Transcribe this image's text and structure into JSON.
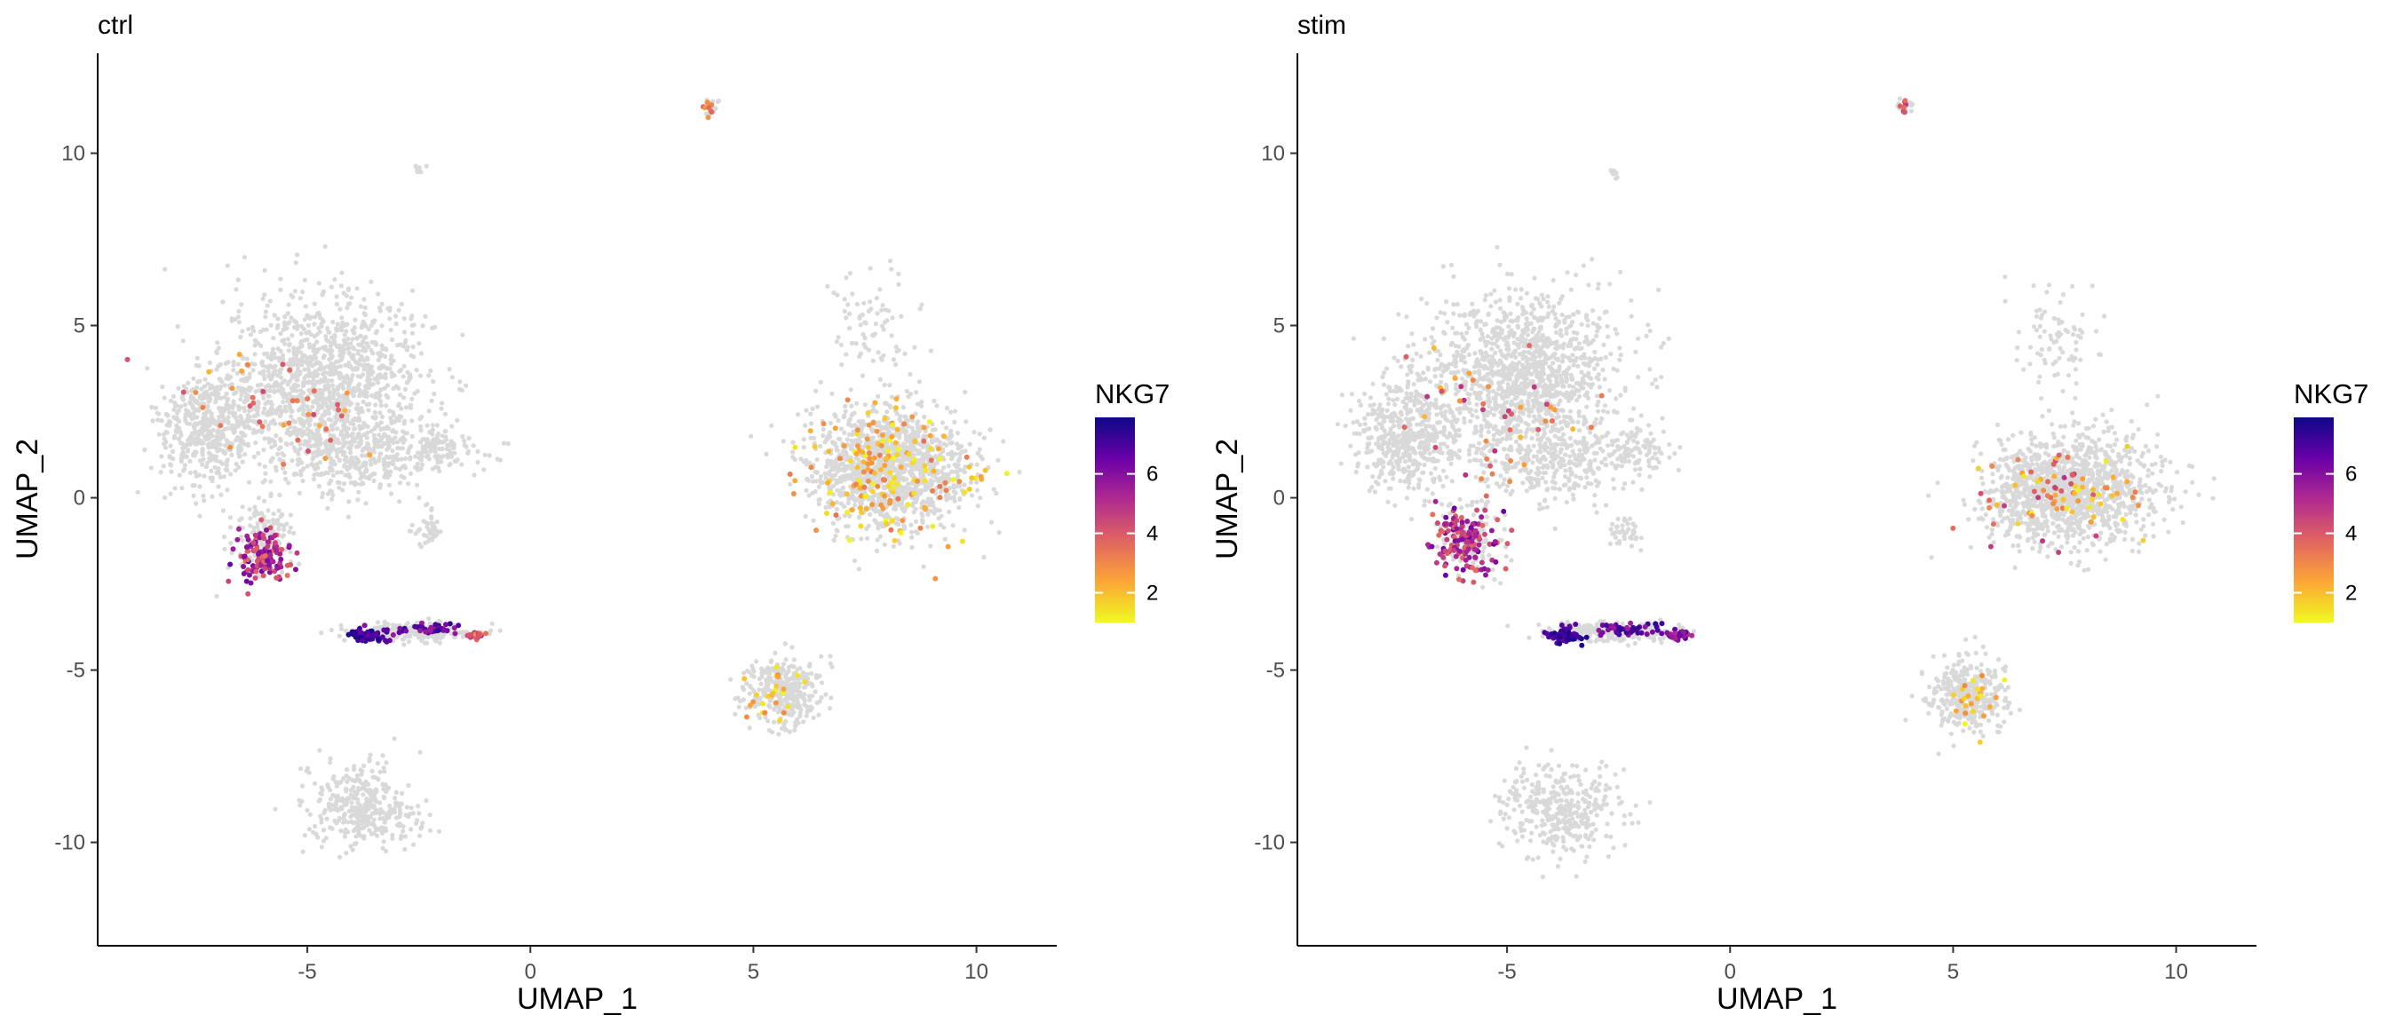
{
  "chart_data": [
    {
      "type": "scatter",
      "title": "ctrl",
      "xlabel": "UMAP_1",
      "ylabel": "UMAP_2",
      "xlim": [
        -9.7,
        11.8
      ],
      "ylim": [
        -13.0,
        12.9
      ],
      "x_ticks": [
        -5,
        0,
        5,
        10
      ],
      "y_ticks": [
        -10,
        -5,
        0,
        5,
        10
      ],
      "grid": false,
      "legend": {
        "title": "NKG7",
        "placement": "right",
        "color_scale": "plasma (reversed)",
        "range": [
          1,
          7.9
        ],
        "ticks": [
          2,
          4,
          6
        ],
        "colors": [
          "#f0f921",
          "#fca636",
          "#e16462",
          "#b12a90",
          "#6a00a8",
          "#0d0887"
        ]
      },
      "background_color": "#d9d9d9",
      "series": [
        {
          "name": "NKG7",
          "clusters": [
            {
              "label": "upper-left-island",
              "center": [
                -4.6,
                3.3
              ],
              "spread": [
                1.9,
                2.1
              ],
              "n": 1300
            },
            {
              "label": "left-lobe",
              "center": [
                -7.2,
                2.0
              ],
              "spread": [
                0.9,
                1.3
              ],
              "n": 500
            },
            {
              "label": "left-mid",
              "center": [
                -4.0,
                1.2
              ],
              "spread": [
                1.5,
                0.9
              ],
              "n": 300
            },
            {
              "label": "right-arm",
              "center": [
                -2.0,
                1.5
              ],
              "spread": [
                0.7,
                0.5
              ],
              "n": 90
            },
            {
              "label": "left-lower",
              "center": [
                -5.9,
                -1.2
              ],
              "spread": [
                0.6,
                0.9
              ],
              "n": 140
            },
            {
              "label": "small-blob",
              "center": [
                -2.3,
                -0.9
              ],
              "spread": [
                0.3,
                0.5
              ],
              "n": 40
            },
            {
              "label": "nk-band",
              "center": [
                -2.8,
                -3.9
              ],
              "spread": [
                1.3,
                0.23
              ],
              "n": 250
            },
            {
              "label": "right-main",
              "center": [
                8.0,
                0.9
              ],
              "spread": [
                1.5,
                1.4
              ],
              "n": 1300
            },
            {
              "label": "right-arm-up",
              "center": [
                7.7,
                5.0
              ],
              "spread": [
                0.8,
                1.2
              ],
              "n": 80
            },
            {
              "label": "right-lower",
              "center": [
                5.7,
                -5.6
              ],
              "spread": [
                0.7,
                0.8
              ],
              "n": 350
            },
            {
              "label": "bottom-left",
              "center": [
                -3.8,
                -9.0
              ],
              "spread": [
                1.1,
                1.0
              ],
              "n": 360
            },
            {
              "label": "top-small",
              "center": [
                -2.5,
                9.5
              ],
              "spread": [
                0.1,
                0.1
              ],
              "n": 10
            },
            {
              "label": "top-right-small",
              "center": [
                4.0,
                11.3
              ],
              "spread": [
                0.18,
                0.2
              ],
              "n": 20
            }
          ],
          "expressing": [
            {
              "label": "left-lower-expr",
              "center": [
                -6.0,
                -1.7
              ],
              "spread": [
                0.5,
                0.6
              ],
              "n": 130,
              "level": [
                3.5,
                6.5
              ]
            },
            {
              "label": "nk-core",
              "center": [
                -3.6,
                -4.0
              ],
              "spread": [
                0.35,
                0.18
              ],
              "n": 55,
              "level": [
                6.5,
                7.8
              ]
            },
            {
              "label": "nk-mid",
              "center": [
                -2.3,
                -3.8
              ],
              "spread": [
                0.7,
                0.15
              ],
              "n": 45,
              "level": [
                5.5,
                7.5
              ]
            },
            {
              "label": "nk-tip",
              "center": [
                -1.2,
                -4.0
              ],
              "spread": [
                0.2,
                0.1
              ],
              "n": 25,
              "level": [
                2.5,
                5.5
              ]
            },
            {
              "label": "right-main-expr",
              "center": [
                8.0,
                0.8
              ],
              "spread": [
                1.4,
                1.3
              ],
              "n": 170,
              "level": [
                1,
                3.5
              ]
            },
            {
              "label": "right-lower-expr",
              "center": [
                5.5,
                -5.8
              ],
              "spread": [
                0.6,
                0.6
              ],
              "n": 25,
              "level": [
                1,
                3
              ]
            },
            {
              "label": "upper-left-expr",
              "center": [
                -5.5,
                2.5
              ],
              "spread": [
                1.8,
                1.6
              ],
              "n": 40,
              "level": [
                2,
                4.5
              ]
            },
            {
              "label": "top-right-expr",
              "center": [
                4.0,
                11.3
              ],
              "spread": [
                0.15,
                0.2
              ],
              "n": 8,
              "level": [
                2.5,
                4
              ]
            }
          ]
        }
      ]
    },
    {
      "type": "scatter",
      "title": "stim",
      "xlabel": "UMAP_1",
      "ylabel": "UMAP_2",
      "xlim": [
        -9.7,
        11.8
      ],
      "ylim": [
        -13.0,
        12.9
      ],
      "x_ticks": [
        -5,
        0,
        5,
        10
      ],
      "y_ticks": [
        -10,
        -5,
        0,
        5,
        10
      ],
      "grid": false,
      "legend": {
        "title": "NKG7",
        "placement": "right",
        "color_scale": "plasma (reversed)",
        "range": [
          1,
          7.9
        ],
        "ticks": [
          2,
          4,
          6
        ],
        "colors": [
          "#f0f921",
          "#fca636",
          "#e16462",
          "#b12a90",
          "#6a00a8",
          "#0d0887"
        ]
      },
      "background_color": "#d9d9d9",
      "series": [
        {
          "name": "NKG7",
          "clusters": [
            {
              "label": "upper-left-island",
              "center": [
                -4.7,
                3.5
              ],
              "spread": [
                1.9,
                2.0
              ],
              "n": 1300
            },
            {
              "label": "left-lobe",
              "center": [
                -7.3,
                1.8
              ],
              "spread": [
                0.9,
                1.3
              ],
              "n": 500
            },
            {
              "label": "left-mid",
              "center": [
                -4.0,
                1.0
              ],
              "spread": [
                1.5,
                0.9
              ],
              "n": 300
            },
            {
              "label": "right-arm",
              "center": [
                -2.2,
                1.4
              ],
              "spread": [
                0.7,
                0.6
              ],
              "n": 90
            },
            {
              "label": "left-lower",
              "center": [
                -5.8,
                -1.2
              ],
              "spread": [
                0.6,
                0.9
              ],
              "n": 140
            },
            {
              "label": "small-blob",
              "center": [
                -2.4,
                -1.0
              ],
              "spread": [
                0.3,
                0.4
              ],
              "n": 40
            },
            {
              "label": "nk-band",
              "center": [
                -2.7,
                -3.9
              ],
              "spread": [
                1.2,
                0.23
              ],
              "n": 250
            },
            {
              "label": "right-main",
              "center": [
                7.6,
                0.2
              ],
              "spread": [
                1.6,
                1.3
              ],
              "n": 1300
            },
            {
              "label": "right-arm-up",
              "center": [
                7.3,
                4.5
              ],
              "spread": [
                0.8,
                1.4
              ],
              "n": 80
            },
            {
              "label": "right-lower",
              "center": [
                5.3,
                -5.7
              ],
              "spread": [
                0.7,
                0.9
              ],
              "n": 350
            },
            {
              "label": "bottom-left",
              "center": [
                -3.8,
                -9.1
              ],
              "spread": [
                1.1,
                1.1
              ],
              "n": 360
            },
            {
              "label": "top-small",
              "center": [
                -2.6,
                9.4
              ],
              "spread": [
                0.1,
                0.15
              ],
              "n": 10
            },
            {
              "label": "top-right-small",
              "center": [
                3.9,
                11.4
              ],
              "spread": [
                0.15,
                0.18
              ],
              "n": 20
            }
          ],
          "expressing": [
            {
              "label": "left-lower-expr",
              "center": [
                -5.9,
                -1.3
              ],
              "spread": [
                0.6,
                0.8
              ],
              "n": 150,
              "level": [
                3.5,
                6.5
              ]
            },
            {
              "label": "nk-core",
              "center": [
                -3.7,
                -4.0
              ],
              "spread": [
                0.35,
                0.2
              ],
              "n": 60,
              "level": [
                6.5,
                7.8
              ]
            },
            {
              "label": "nk-mid",
              "center": [
                -2.2,
                -3.8
              ],
              "spread": [
                0.7,
                0.15
              ],
              "n": 45,
              "level": [
                5.5,
                7.5
              ]
            },
            {
              "label": "nk-tip",
              "center": [
                -1.2,
                -4.0
              ],
              "spread": [
                0.25,
                0.1
              ],
              "n": 25,
              "level": [
                5,
                7
              ]
            },
            {
              "label": "right-main-expr",
              "center": [
                7.6,
                0.2
              ],
              "spread": [
                1.5,
                1.3
              ],
              "n": 80,
              "level": [
                1,
                5
              ]
            },
            {
              "label": "right-lower-expr",
              "center": [
                5.3,
                -5.8
              ],
              "spread": [
                0.6,
                0.7
              ],
              "n": 25,
              "level": [
                1,
                3
              ]
            },
            {
              "label": "upper-left-expr",
              "center": [
                -5.5,
                2.5
              ],
              "spread": [
                1.8,
                1.6
              ],
              "n": 45,
              "level": [
                2,
                5
              ]
            },
            {
              "label": "top-right-expr",
              "center": [
                3.9,
                11.4
              ],
              "spread": [
                0.12,
                0.15
              ],
              "n": 8,
              "level": [
                3.5,
                5
              ]
            }
          ]
        }
      ]
    }
  ]
}
